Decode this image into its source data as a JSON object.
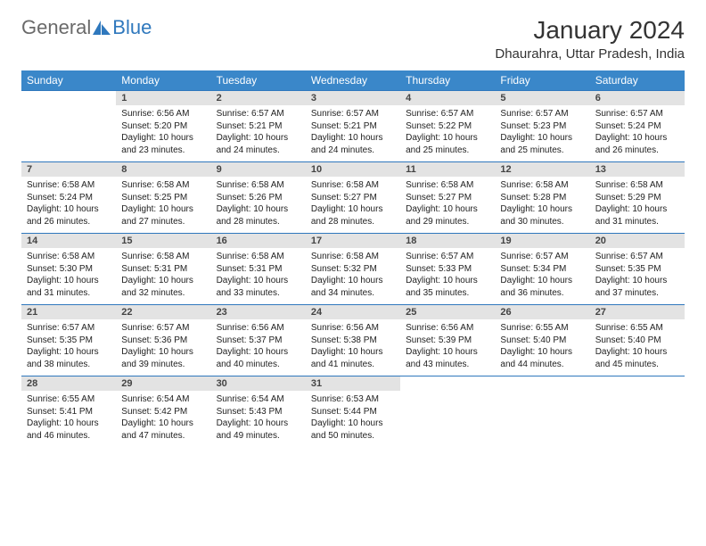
{
  "logo": {
    "text_general": "General",
    "text_blue": "Blue"
  },
  "title": "January 2024",
  "location": "Dhaurahra, Uttar Pradesh, India",
  "colors": {
    "header_bg": "#3a87c9",
    "header_text": "#ffffff",
    "daynum_bg": "#e3e3e3",
    "row_border": "#2f78bd",
    "logo_gray": "#6a6a6a",
    "logo_blue": "#2f78bd"
  },
  "day_headers": [
    "Sunday",
    "Monday",
    "Tuesday",
    "Wednesday",
    "Thursday",
    "Friday",
    "Saturday"
  ],
  "weeks": [
    {
      "nums": [
        "",
        "1",
        "2",
        "3",
        "4",
        "5",
        "6"
      ],
      "cells": [
        null,
        {
          "sunrise": "Sunrise: 6:56 AM",
          "sunset": "Sunset: 5:20 PM",
          "daylight": "Daylight: 10 hours and 23 minutes."
        },
        {
          "sunrise": "Sunrise: 6:57 AM",
          "sunset": "Sunset: 5:21 PM",
          "daylight": "Daylight: 10 hours and 24 minutes."
        },
        {
          "sunrise": "Sunrise: 6:57 AM",
          "sunset": "Sunset: 5:21 PM",
          "daylight": "Daylight: 10 hours and 24 minutes."
        },
        {
          "sunrise": "Sunrise: 6:57 AM",
          "sunset": "Sunset: 5:22 PM",
          "daylight": "Daylight: 10 hours and 25 minutes."
        },
        {
          "sunrise": "Sunrise: 6:57 AM",
          "sunset": "Sunset: 5:23 PM",
          "daylight": "Daylight: 10 hours and 25 minutes."
        },
        {
          "sunrise": "Sunrise: 6:57 AM",
          "sunset": "Sunset: 5:24 PM",
          "daylight": "Daylight: 10 hours and 26 minutes."
        }
      ]
    },
    {
      "nums": [
        "7",
        "8",
        "9",
        "10",
        "11",
        "12",
        "13"
      ],
      "cells": [
        {
          "sunrise": "Sunrise: 6:58 AM",
          "sunset": "Sunset: 5:24 PM",
          "daylight": "Daylight: 10 hours and 26 minutes."
        },
        {
          "sunrise": "Sunrise: 6:58 AM",
          "sunset": "Sunset: 5:25 PM",
          "daylight": "Daylight: 10 hours and 27 minutes."
        },
        {
          "sunrise": "Sunrise: 6:58 AM",
          "sunset": "Sunset: 5:26 PM",
          "daylight": "Daylight: 10 hours and 28 minutes."
        },
        {
          "sunrise": "Sunrise: 6:58 AM",
          "sunset": "Sunset: 5:27 PM",
          "daylight": "Daylight: 10 hours and 28 minutes."
        },
        {
          "sunrise": "Sunrise: 6:58 AM",
          "sunset": "Sunset: 5:27 PM",
          "daylight": "Daylight: 10 hours and 29 minutes."
        },
        {
          "sunrise": "Sunrise: 6:58 AM",
          "sunset": "Sunset: 5:28 PM",
          "daylight": "Daylight: 10 hours and 30 minutes."
        },
        {
          "sunrise": "Sunrise: 6:58 AM",
          "sunset": "Sunset: 5:29 PM",
          "daylight": "Daylight: 10 hours and 31 minutes."
        }
      ]
    },
    {
      "nums": [
        "14",
        "15",
        "16",
        "17",
        "18",
        "19",
        "20"
      ],
      "cells": [
        {
          "sunrise": "Sunrise: 6:58 AM",
          "sunset": "Sunset: 5:30 PM",
          "daylight": "Daylight: 10 hours and 31 minutes."
        },
        {
          "sunrise": "Sunrise: 6:58 AM",
          "sunset": "Sunset: 5:31 PM",
          "daylight": "Daylight: 10 hours and 32 minutes."
        },
        {
          "sunrise": "Sunrise: 6:58 AM",
          "sunset": "Sunset: 5:31 PM",
          "daylight": "Daylight: 10 hours and 33 minutes."
        },
        {
          "sunrise": "Sunrise: 6:58 AM",
          "sunset": "Sunset: 5:32 PM",
          "daylight": "Daylight: 10 hours and 34 minutes."
        },
        {
          "sunrise": "Sunrise: 6:57 AM",
          "sunset": "Sunset: 5:33 PM",
          "daylight": "Daylight: 10 hours and 35 minutes."
        },
        {
          "sunrise": "Sunrise: 6:57 AM",
          "sunset": "Sunset: 5:34 PM",
          "daylight": "Daylight: 10 hours and 36 minutes."
        },
        {
          "sunrise": "Sunrise: 6:57 AM",
          "sunset": "Sunset: 5:35 PM",
          "daylight": "Daylight: 10 hours and 37 minutes."
        }
      ]
    },
    {
      "nums": [
        "21",
        "22",
        "23",
        "24",
        "25",
        "26",
        "27"
      ],
      "cells": [
        {
          "sunrise": "Sunrise: 6:57 AM",
          "sunset": "Sunset: 5:35 PM",
          "daylight": "Daylight: 10 hours and 38 minutes."
        },
        {
          "sunrise": "Sunrise: 6:57 AM",
          "sunset": "Sunset: 5:36 PM",
          "daylight": "Daylight: 10 hours and 39 minutes."
        },
        {
          "sunrise": "Sunrise: 6:56 AM",
          "sunset": "Sunset: 5:37 PM",
          "daylight": "Daylight: 10 hours and 40 minutes."
        },
        {
          "sunrise": "Sunrise: 6:56 AM",
          "sunset": "Sunset: 5:38 PM",
          "daylight": "Daylight: 10 hours and 41 minutes."
        },
        {
          "sunrise": "Sunrise: 6:56 AM",
          "sunset": "Sunset: 5:39 PM",
          "daylight": "Daylight: 10 hours and 43 minutes."
        },
        {
          "sunrise": "Sunrise: 6:55 AM",
          "sunset": "Sunset: 5:40 PM",
          "daylight": "Daylight: 10 hours and 44 minutes."
        },
        {
          "sunrise": "Sunrise: 6:55 AM",
          "sunset": "Sunset: 5:40 PM",
          "daylight": "Daylight: 10 hours and 45 minutes."
        }
      ]
    },
    {
      "nums": [
        "28",
        "29",
        "30",
        "31",
        "",
        "",
        ""
      ],
      "cells": [
        {
          "sunrise": "Sunrise: 6:55 AM",
          "sunset": "Sunset: 5:41 PM",
          "daylight": "Daylight: 10 hours and 46 minutes."
        },
        {
          "sunrise": "Sunrise: 6:54 AM",
          "sunset": "Sunset: 5:42 PM",
          "daylight": "Daylight: 10 hours and 47 minutes."
        },
        {
          "sunrise": "Sunrise: 6:54 AM",
          "sunset": "Sunset: 5:43 PM",
          "daylight": "Daylight: 10 hours and 49 minutes."
        },
        {
          "sunrise": "Sunrise: 6:53 AM",
          "sunset": "Sunset: 5:44 PM",
          "daylight": "Daylight: 10 hours and 50 minutes."
        },
        null,
        null,
        null
      ]
    }
  ]
}
